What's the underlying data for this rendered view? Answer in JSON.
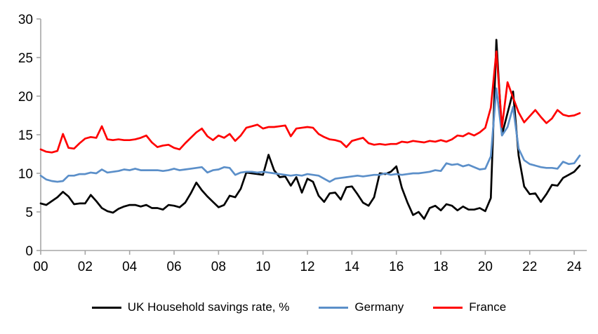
{
  "chart_data": {
    "type": "line",
    "title": "",
    "xlabel": "",
    "ylabel": "",
    "x_start_year": 2000,
    "x_step_years": 0.25,
    "x_tick_labels": [
      "00",
      "02",
      "04",
      "06",
      "08",
      "10",
      "12",
      "14",
      "16",
      "18",
      "20",
      "22",
      "24"
    ],
    "x_tick_years": [
      2000,
      2002,
      2004,
      2006,
      2008,
      2010,
      2012,
      2014,
      2016,
      2018,
      2020,
      2022,
      2024
    ],
    "ylim": [
      0,
      30
    ],
    "y_ticks": [
      0,
      5,
      10,
      15,
      20,
      25,
      30
    ],
    "grid": "off",
    "legend_position": "bottom",
    "axis_color": "#A6A6A6",
    "text_color": "#000000",
    "series": [
      {
        "name": "UK Household savings rate, %",
        "color": "#000000",
        "values": [
          6.1,
          5.9,
          6.4,
          6.9,
          7.6,
          7.0,
          6.0,
          6.1,
          6.1,
          7.2,
          6.4,
          5.5,
          5.1,
          4.9,
          5.4,
          5.7,
          5.9,
          5.9,
          5.7,
          5.9,
          5.5,
          5.5,
          5.3,
          5.9,
          5.8,
          5.6,
          6.2,
          7.4,
          8.8,
          7.8,
          7.0,
          6.3,
          5.6,
          5.9,
          7.1,
          6.9,
          8.0,
          10.1,
          10.0,
          9.9,
          9.8,
          12.4,
          10.4,
          9.5,
          9.6,
          8.4,
          9.5,
          7.5,
          9.3,
          8.9,
          7.1,
          6.3,
          7.4,
          7.5,
          6.6,
          8.2,
          8.3,
          7.3,
          6.2,
          5.8,
          6.9,
          10.0,
          9.9,
          10.2,
          10.9,
          8.1,
          6.2,
          4.6,
          5.0,
          4.1,
          5.5,
          5.8,
          5.2,
          6.0,
          5.8,
          5.2,
          5.7,
          5.3,
          5.3,
          5.5,
          5.1,
          6.8,
          27.3,
          15.0,
          17.8,
          20.6,
          12.3,
          8.3,
          7.3,
          7.4,
          6.3,
          7.3,
          8.5,
          8.4,
          9.4,
          9.8,
          10.2,
          11.0
        ]
      },
      {
        "name": "Germany",
        "color": "#5B8FC9",
        "values": [
          9.7,
          9.2,
          9.0,
          8.9,
          9.0,
          9.7,
          9.7,
          9.9,
          9.9,
          10.1,
          10.0,
          10.5,
          10.1,
          10.2,
          10.3,
          10.5,
          10.4,
          10.6,
          10.4,
          10.4,
          10.4,
          10.4,
          10.3,
          10.4,
          10.6,
          10.4,
          10.5,
          10.6,
          10.7,
          10.8,
          10.1,
          10.4,
          10.5,
          10.8,
          10.7,
          9.8,
          10.1,
          10.2,
          10.2,
          10.1,
          10.2,
          10.1,
          10.0,
          9.9,
          9.8,
          9.7,
          9.8,
          9.7,
          9.9,
          9.8,
          9.7,
          9.3,
          8.9,
          9.3,
          9.4,
          9.5,
          9.6,
          9.7,
          9.6,
          9.7,
          9.8,
          9.8,
          10.0,
          9.8,
          9.9,
          9.8,
          9.9,
          10.0,
          10.0,
          10.1,
          10.2,
          10.4,
          10.3,
          11.3,
          11.1,
          11.2,
          10.9,
          11.1,
          10.8,
          10.5,
          10.6,
          12.2,
          21.0,
          14.9,
          16.0,
          18.6,
          13.2,
          11.7,
          11.2,
          11.0,
          10.8,
          10.7,
          10.7,
          10.6,
          11.5,
          11.2,
          11.3,
          12.3
        ]
      },
      {
        "name": "France",
        "color": "#FF0000",
        "values": [
          13.1,
          12.8,
          12.7,
          12.9,
          15.1,
          13.3,
          13.2,
          13.9,
          14.5,
          14.7,
          14.6,
          16.1,
          14.4,
          14.3,
          14.4,
          14.3,
          14.3,
          14.4,
          14.6,
          14.9,
          14.0,
          13.4,
          13.6,
          13.7,
          13.3,
          13.1,
          13.9,
          14.6,
          15.3,
          15.8,
          14.8,
          14.3,
          14.9,
          14.6,
          15.1,
          14.2,
          14.9,
          15.9,
          16.1,
          16.3,
          15.8,
          16.0,
          16.0,
          16.1,
          16.2,
          14.8,
          15.8,
          15.9,
          16.0,
          15.9,
          15.1,
          14.7,
          14.4,
          14.3,
          14.1,
          13.4,
          14.2,
          14.4,
          14.6,
          13.9,
          13.7,
          13.8,
          13.7,
          13.8,
          13.8,
          14.1,
          14.0,
          14.2,
          14.1,
          14.0,
          14.2,
          14.1,
          14.3,
          14.1,
          14.4,
          14.9,
          14.8,
          15.2,
          14.9,
          15.3,
          15.9,
          18.5,
          25.8,
          16.0,
          21.8,
          19.8,
          17.9,
          16.6,
          17.4,
          18.2,
          17.3,
          16.5,
          17.1,
          18.2,
          17.6,
          17.4,
          17.5,
          17.8
        ]
      }
    ]
  }
}
